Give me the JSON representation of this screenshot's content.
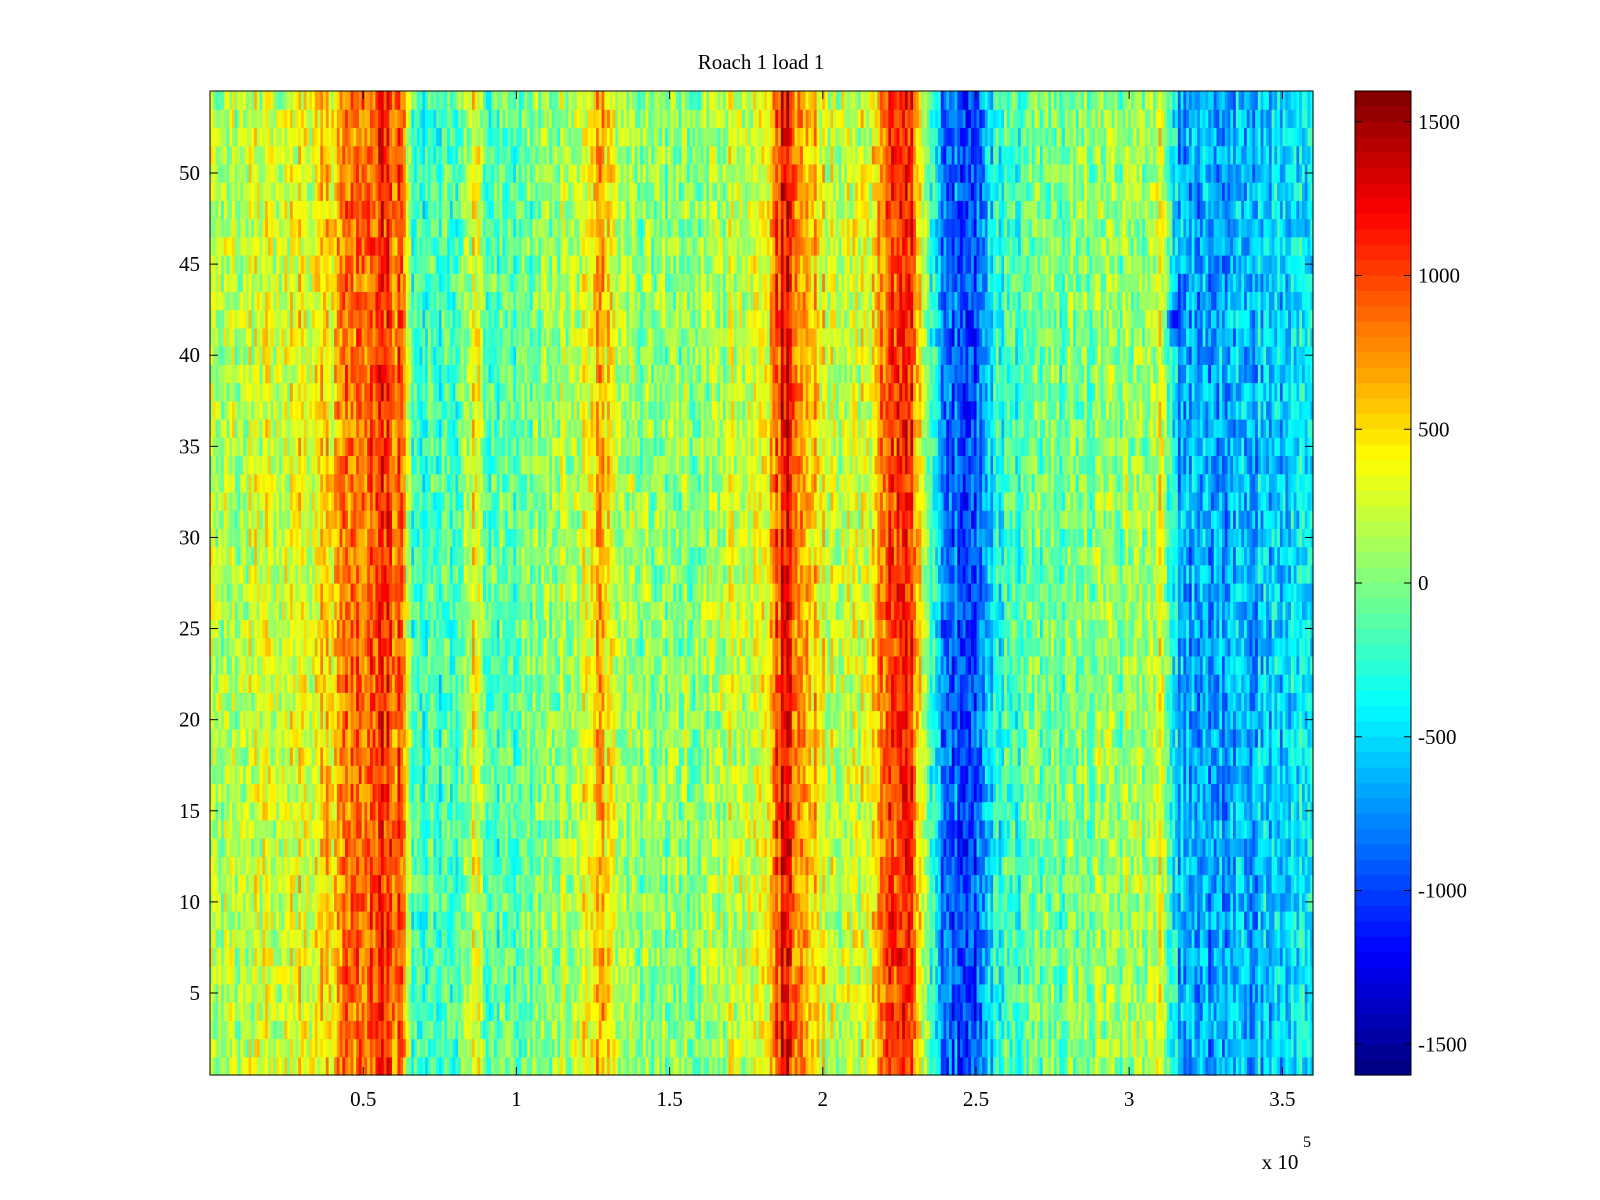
{
  "chart_data": {
    "type": "heatmap",
    "title": "Roach 1 load 1",
    "xlabel": "",
    "ylabel": "",
    "x_exponent_label": {
      "base": "x 10",
      "exponent": "5"
    },
    "xlim": [
      0,
      360000
    ],
    "ylim": [
      0.5,
      54.5
    ],
    "rows": 54,
    "x_ticks": [
      {
        "value": 50000,
        "label": "0.5"
      },
      {
        "value": 100000,
        "label": "1"
      },
      {
        "value": 150000,
        "label": "1.5"
      },
      {
        "value": 200000,
        "label": "2"
      },
      {
        "value": 250000,
        "label": "2.5"
      },
      {
        "value": 300000,
        "label": "3"
      },
      {
        "value": 350000,
        "label": "3.5"
      }
    ],
    "y_ticks": [
      {
        "value": 5,
        "label": "5"
      },
      {
        "value": 10,
        "label": "10"
      },
      {
        "value": 15,
        "label": "15"
      },
      {
        "value": 20,
        "label": "20"
      },
      {
        "value": 25,
        "label": "25"
      },
      {
        "value": 30,
        "label": "30"
      },
      {
        "value": 35,
        "label": "35"
      },
      {
        "value": 40,
        "label": "40"
      },
      {
        "value": 45,
        "label": "45"
      },
      {
        "value": 50,
        "label": "50"
      }
    ],
    "colorbar": {
      "colormap": "jet",
      "clim": [
        -1600,
        1600
      ],
      "ticks": [
        {
          "value": 1500,
          "label": "1500"
        },
        {
          "value": 1000,
          "label": "1000"
        },
        {
          "value": 500,
          "label": "500"
        },
        {
          "value": 0,
          "label": "0"
        },
        {
          "value": -500,
          "label": "-500"
        },
        {
          "value": -1000,
          "label": "-1000"
        },
        {
          "value": -1500,
          "label": "-1500"
        }
      ]
    },
    "column_profile": [
      {
        "x": 0,
        "value": 100
      },
      {
        "x": 20000,
        "value": 250
      },
      {
        "x": 38000,
        "value": 450
      },
      {
        "x": 48000,
        "value": 900
      },
      {
        "x": 56000,
        "value": 1050
      },
      {
        "x": 63000,
        "value": 850
      },
      {
        "x": 66000,
        "value": -300
      },
      {
        "x": 80000,
        "value": -100
      },
      {
        "x": 86000,
        "value": 350
      },
      {
        "x": 92000,
        "value": -150
      },
      {
        "x": 110000,
        "value": 0
      },
      {
        "x": 122000,
        "value": 300
      },
      {
        "x": 128000,
        "value": 650
      },
      {
        "x": 134000,
        "value": 100
      },
      {
        "x": 150000,
        "value": 0
      },
      {
        "x": 165000,
        "value": 150
      },
      {
        "x": 176000,
        "value": 250
      },
      {
        "x": 182000,
        "value": 450
      },
      {
        "x": 188000,
        "value": 1300
      },
      {
        "x": 193000,
        "value": 700
      },
      {
        "x": 205000,
        "value": 150
      },
      {
        "x": 216000,
        "value": 350
      },
      {
        "x": 222000,
        "value": 1050
      },
      {
        "x": 229000,
        "value": 1000
      },
      {
        "x": 233000,
        "value": 100
      },
      {
        "x": 239000,
        "value": -800
      },
      {
        "x": 246000,
        "value": -1000
      },
      {
        "x": 251000,
        "value": -800
      },
      {
        "x": 256000,
        "value": -400
      },
      {
        "x": 262000,
        "value": -150
      },
      {
        "x": 280000,
        "value": 0
      },
      {
        "x": 295000,
        "value": 50
      },
      {
        "x": 304000,
        "value": 100
      },
      {
        "x": 311000,
        "value": 300
      },
      {
        "x": 316000,
        "value": -650
      },
      {
        "x": 330000,
        "value": -700
      },
      {
        "x": 345000,
        "value": -550
      },
      {
        "x": 360000,
        "value": -450
      }
    ],
    "noise_amplitude": 380,
    "hotspots": [
      {
        "x": 315000,
        "y": 42,
        "value": -1200
      }
    ]
  }
}
